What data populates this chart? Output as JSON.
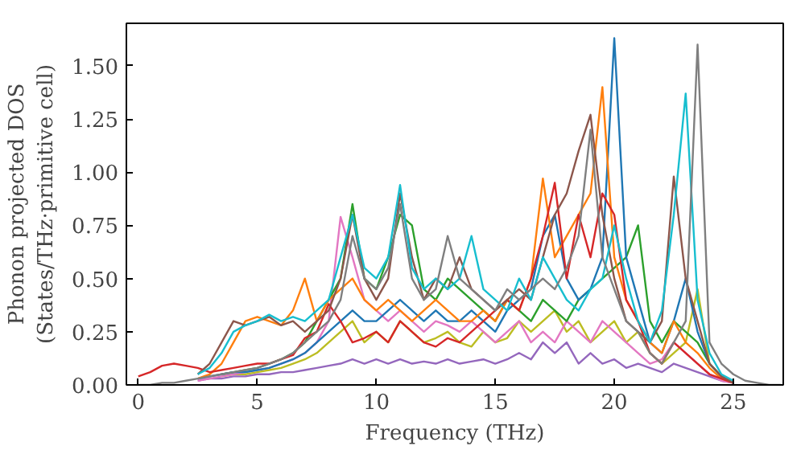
{
  "chart_data": {
    "type": "line",
    "xlabel": "Frequency (THz)",
    "ylabel": "Phonon projected DOS\n(States/THz·primitive cell)",
    "xlim": [
      -0.5,
      27.1
    ],
    "ylim": [
      0,
      1.7
    ],
    "xticks": [
      0,
      5,
      10,
      15,
      20,
      25
    ],
    "yticks": [
      {
        "value": 0,
        "label": "0.00"
      },
      {
        "value": 0.25,
        "label": "0.25"
      },
      {
        "value": 0.5,
        "label": "0.50"
      },
      {
        "value": 0.75,
        "label": "0.75"
      },
      {
        "value": 1.0,
        "label": "1.00"
      },
      {
        "value": 1.25,
        "label": "1.25"
      },
      {
        "value": 1.5,
        "label": "1.50"
      }
    ],
    "x": [
      0,
      0.5,
      1,
      1.5,
      2,
      2.5,
      3,
      3.5,
      4,
      4.5,
      5,
      5.5,
      6,
      6.5,
      7,
      7.5,
      8,
      8.5,
      9,
      9.5,
      10,
      10.5,
      11,
      11.5,
      12,
      12.5,
      13,
      13.5,
      14,
      14.5,
      15,
      15.5,
      16,
      16.5,
      17,
      17.5,
      18,
      18.5,
      19,
      19.5,
      20,
      20.5,
      21,
      21.5,
      22,
      22.5,
      23,
      23.5,
      24,
      24.5,
      25,
      25.5,
      26,
      26.5,
      27
    ],
    "series": [
      {
        "color": "#9467bd",
        "x": [
          2.5,
          3,
          3.5,
          4,
          4.5,
          5,
          5.5,
          6,
          6.5,
          7,
          7.5,
          8,
          8.5,
          9,
          9.5,
          10,
          10.5,
          11,
          11.5,
          12,
          12.5,
          13,
          13.5,
          14,
          14.5,
          15,
          15.5,
          16,
          16.5,
          17,
          17.5,
          18,
          18.5,
          19,
          19.5,
          20,
          20.5,
          21,
          21.5,
          22,
          22.5,
          23,
          23.5,
          24,
          24.5,
          25
        ],
        "values": [
          0.02,
          0.03,
          0.03,
          0.04,
          0.04,
          0.05,
          0.05,
          0.06,
          0.06,
          0.07,
          0.08,
          0.09,
          0.1,
          0.12,
          0.1,
          0.12,
          0.1,
          0.12,
          0.1,
          0.11,
          0.1,
          0.12,
          0.1,
          0.11,
          0.12,
          0.1,
          0.12,
          0.15,
          0.12,
          0.2,
          0.15,
          0.2,
          0.1,
          0.15,
          0.1,
          0.12,
          0.08,
          0.1,
          0.08,
          0.06,
          0.1,
          0.08,
          0.06,
          0.04,
          0.02,
          0.01
        ]
      },
      {
        "color": "#bcbd22",
        "x": [
          3.5,
          4,
          4.5,
          5,
          5.5,
          6,
          6.5,
          7,
          7.5,
          8,
          8.5,
          9,
          9.5,
          10,
          10.5,
          11,
          11.5,
          12,
          12.5,
          13,
          13.5,
          14,
          14.5,
          15,
          15.5,
          16,
          16.5,
          17,
          17.5,
          18,
          18.5,
          19,
          19.5,
          20,
          20.5,
          21,
          21.5,
          22,
          22.5,
          23,
          23.5,
          24,
          24.5,
          25
        ],
        "values": [
          0.04,
          0.05,
          0.05,
          0.06,
          0.07,
          0.08,
          0.1,
          0.12,
          0.15,
          0.2,
          0.25,
          0.3,
          0.2,
          0.25,
          0.2,
          0.3,
          0.25,
          0.2,
          0.22,
          0.25,
          0.2,
          0.18,
          0.25,
          0.2,
          0.22,
          0.3,
          0.25,
          0.3,
          0.35,
          0.25,
          0.3,
          0.2,
          0.25,
          0.3,
          0.2,
          0.25,
          0.15,
          0.1,
          0.15,
          0.2,
          0.45,
          0.1,
          0.04,
          0.01
        ]
      },
      {
        "color": "#e377c2",
        "x": [
          2.5,
          3,
          3.5,
          4,
          4.5,
          5,
          5.5,
          6,
          6.5,
          7,
          7.5,
          8,
          8.5,
          9,
          9.5,
          10,
          10.5,
          11,
          11.5,
          12,
          12.5,
          13,
          13.5,
          14,
          14.5,
          15,
          15.5,
          16,
          16.5,
          17,
          17.5,
          18,
          18.5,
          19,
          19.5,
          20,
          20.5,
          21,
          21.5,
          22,
          22.5,
          23,
          23.5,
          24,
          24.5,
          25
        ],
        "values": [
          0.02,
          0.03,
          0.04,
          0.05,
          0.06,
          0.07,
          0.08,
          0.1,
          0.12,
          0.15,
          0.2,
          0.3,
          0.79,
          0.6,
          0.4,
          0.35,
          0.3,
          0.35,
          0.3,
          0.25,
          0.3,
          0.28,
          0.25,
          0.3,
          0.25,
          0.2,
          0.25,
          0.3,
          0.2,
          0.25,
          0.2,
          0.3,
          0.25,
          0.2,
          0.3,
          0.25,
          0.2,
          0.15,
          0.1,
          0.12,
          0.2,
          0.15,
          0.1,
          0.05,
          0.02,
          0.01
        ]
      },
      {
        "color": "#2ca02c",
        "x": [
          3.5,
          4,
          4.5,
          5,
          5.5,
          6,
          6.5,
          7,
          7.5,
          8,
          8.5,
          9,
          9.5,
          10,
          10.5,
          11,
          11.5,
          12,
          12.5,
          13,
          13.5,
          14,
          14.5,
          15,
          15.5,
          16,
          16.5,
          17,
          17.5,
          18,
          18.5,
          19,
          19.5,
          20,
          20.5,
          21,
          21.5,
          22,
          22.5,
          23,
          23.5,
          24,
          24.5,
          25
        ],
        "values": [
          0.05,
          0.06,
          0.07,
          0.08,
          0.1,
          0.12,
          0.15,
          0.2,
          0.3,
          0.4,
          0.5,
          0.85,
          0.5,
          0.45,
          0.6,
          0.8,
          0.75,
          0.45,
          0.4,
          0.5,
          0.45,
          0.4,
          0.35,
          0.3,
          0.4,
          0.35,
          0.3,
          0.4,
          0.35,
          0.3,
          0.4,
          0.45,
          0.5,
          0.55,
          0.6,
          0.75,
          0.3,
          0.2,
          0.3,
          0.25,
          0.2,
          0.1,
          0.04,
          0.01
        ]
      },
      {
        "color": "#1f77b4",
        "x": [
          2.5,
          3,
          3.5,
          4,
          4.5,
          5,
          5.5,
          6,
          6.5,
          7,
          7.5,
          8,
          8.5,
          9,
          9.5,
          10,
          10.5,
          11,
          11.5,
          12,
          12.5,
          13,
          13.5,
          14,
          14.5,
          15,
          15.5,
          16,
          16.5,
          17,
          17.5,
          18,
          18.5,
          19,
          19.5,
          20,
          20.5,
          21,
          21.5,
          22,
          22.5,
          23,
          23.5,
          24,
          24.5,
          25
        ],
        "values": [
          0.03,
          0.04,
          0.05,
          0.06,
          0.06,
          0.07,
          0.08,
          0.1,
          0.12,
          0.15,
          0.2,
          0.25,
          0.3,
          0.35,
          0.3,
          0.3,
          0.35,
          0.4,
          0.35,
          0.3,
          0.35,
          0.3,
          0.3,
          0.35,
          0.3,
          0.25,
          0.35,
          0.4,
          0.45,
          0.7,
          0.8,
          0.5,
          0.4,
          0.45,
          0.6,
          1.63,
          0.6,
          0.4,
          0.2,
          0.15,
          0.3,
          0.5,
          0.25,
          0.1,
          0.04,
          0.01
        ]
      },
      {
        "color": "#ff7f0e",
        "x": [
          2.5,
          3,
          3.5,
          4,
          4.5,
          5,
          5.5,
          6,
          6.5,
          7,
          7.5,
          8,
          8.5,
          9,
          9.5,
          10,
          10.5,
          11,
          11.5,
          12,
          12.5,
          13,
          13.5,
          14,
          14.5,
          15,
          15.5,
          16,
          16.5,
          17,
          17.5,
          18,
          18.5,
          19,
          19.5,
          20,
          20.5,
          21,
          21.5,
          22,
          22.5,
          23,
          23.5,
          24,
          24.5,
          25
        ],
        "values": [
          0.03,
          0.05,
          0.1,
          0.2,
          0.3,
          0.32,
          0.3,
          0.28,
          0.35,
          0.5,
          0.3,
          0.4,
          0.45,
          0.5,
          0.4,
          0.35,
          0.4,
          0.35,
          0.3,
          0.35,
          0.4,
          0.35,
          0.3,
          0.3,
          0.35,
          0.3,
          0.4,
          0.35,
          0.5,
          0.97,
          0.6,
          0.7,
          0.8,
          0.9,
          1.4,
          0.6,
          0.4,
          0.3,
          0.2,
          0.15,
          0.3,
          0.2,
          0.15,
          0.08,
          0.03,
          0.01
        ]
      },
      {
        "color": "#d62728",
        "x": [
          0,
          0.5,
          1,
          1.5,
          2,
          2.5,
          3,
          3.5,
          4,
          4.5,
          5,
          5.5,
          6,
          6.5,
          7,
          7.5,
          8,
          8.5,
          9,
          9.5,
          10,
          10.5,
          11,
          11.5,
          12,
          12.5,
          13,
          13.5,
          14,
          14.5,
          15,
          15.5,
          16,
          16.5,
          17,
          17.5,
          18,
          18.5,
          19,
          19.5,
          20,
          20.5,
          21,
          21.5,
          22,
          22.5,
          23,
          23.5,
          24,
          24.5,
          25
        ],
        "values": [
          0.04,
          0.06,
          0.09,
          0.1,
          0.09,
          0.08,
          0.06,
          0.07,
          0.08,
          0.09,
          0.1,
          0.1,
          0.12,
          0.14,
          0.22,
          0.25,
          0.38,
          0.3,
          0.2,
          0.22,
          0.25,
          0.2,
          0.3,
          0.25,
          0.2,
          0.18,
          0.22,
          0.2,
          0.25,
          0.3,
          0.35,
          0.4,
          0.35,
          0.5,
          0.7,
          0.95,
          0.5,
          0.8,
          0.6,
          0.9,
          0.8,
          0.4,
          0.3,
          0.15,
          0.1,
          0.2,
          0.15,
          0.1,
          0.05,
          0.03,
          0.01
        ]
      },
      {
        "color": "#8c564b",
        "x": [
          2.5,
          3,
          3.5,
          4,
          4.5,
          5,
          5.5,
          6,
          6.5,
          7,
          7.5,
          8,
          8.5,
          9,
          9.5,
          10,
          10.5,
          11,
          11.5,
          12,
          12.5,
          13,
          13.5,
          14,
          14.5,
          15,
          15.5,
          16,
          16.5,
          17,
          17.5,
          18,
          18.5,
          19,
          19.5,
          20,
          20.5,
          21,
          21.5,
          22,
          22.5,
          23,
          23.5,
          24,
          24.5,
          25
        ],
        "values": [
          0.05,
          0.1,
          0.2,
          0.3,
          0.28,
          0.3,
          0.32,
          0.28,
          0.3,
          0.25,
          0.3,
          0.35,
          0.5,
          0.8,
          0.5,
          0.4,
          0.5,
          0.9,
          0.6,
          0.4,
          0.5,
          0.45,
          0.6,
          0.45,
          0.4,
          0.35,
          0.4,
          0.45,
          0.4,
          0.6,
          0.8,
          0.9,
          1.1,
          1.27,
          0.8,
          0.5,
          0.3,
          0.25,
          0.2,
          0.3,
          0.98,
          0.5,
          0.3,
          0.1,
          0.04,
          0.01
        ]
      },
      {
        "color": "#17becf",
        "x": [
          2.5,
          3,
          3.5,
          4,
          4.5,
          5,
          5.5,
          6,
          6.5,
          7,
          7.5,
          8,
          8.5,
          9,
          9.5,
          10,
          10.5,
          11,
          11.5,
          12,
          12.5,
          13,
          13.5,
          14,
          14.5,
          15,
          15.5,
          16,
          16.5,
          17,
          17.5,
          18,
          18.5,
          19,
          19.5,
          20,
          20.5,
          21,
          21.5,
          22,
          22.5,
          23,
          23.5,
          24,
          24.5,
          25
        ],
        "values": [
          0.05,
          0.08,
          0.15,
          0.25,
          0.28,
          0.3,
          0.33,
          0.3,
          0.32,
          0.3,
          0.35,
          0.4,
          0.6,
          0.8,
          0.55,
          0.5,
          0.6,
          0.94,
          0.55,
          0.45,
          0.5,
          0.45,
          0.5,
          0.7,
          0.45,
          0.4,
          0.35,
          0.5,
          0.4,
          0.6,
          0.5,
          0.4,
          0.35,
          0.45,
          0.5,
          0.75,
          0.5,
          0.3,
          0.2,
          0.35,
          0.8,
          1.37,
          0.4,
          0.15,
          0.05,
          0.02
        ]
      },
      {
        "color": "#7f7f7f",
        "values": [
          0,
          0,
          0.01,
          0.01,
          0.02,
          0.03,
          0.04,
          0.05,
          0.06,
          0.07,
          0.08,
          0.1,
          0.12,
          0.15,
          0.2,
          0.25,
          0.3,
          0.4,
          0.7,
          0.5,
          0.45,
          0.55,
          0.85,
          0.5,
          0.4,
          0.45,
          0.7,
          0.5,
          0.45,
          0.4,
          0.35,
          0.45,
          0.4,
          0.45,
          0.5,
          0.45,
          0.55,
          0.7,
          1.2,
          0.6,
          0.45,
          0.3,
          0.25,
          0.15,
          0.1,
          0.2,
          0.3,
          1.6,
          0.2,
          0.1,
          0.05,
          0.02,
          0.01,
          0,
          0
        ]
      }
    ]
  }
}
